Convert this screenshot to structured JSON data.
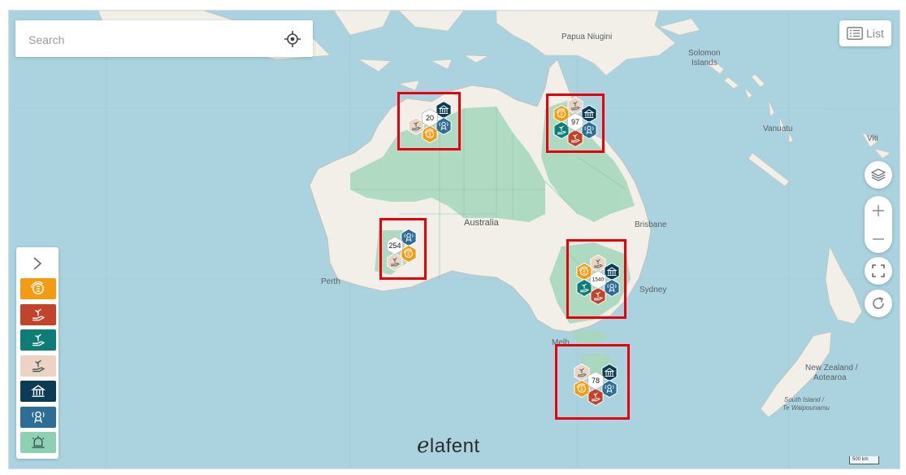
{
  "search": {
    "placeholder": "Search"
  },
  "toolbar": {
    "list_label": "List"
  },
  "map": {
    "places": {
      "papua": "Papua Niugini",
      "solomon": "Solomon\nIslands",
      "vanuatu": "Vanuatu",
      "viti": "Viti",
      "australia": "Australia",
      "brisbane": "Brisbane",
      "perth": "Perth",
      "sydney": "Sydney",
      "nz": "New Zealand /\nAotearoa",
      "south_island": "South Island /\nTe Waipounamu"
    },
    "scale_label": "500 km"
  },
  "colors": {
    "water": "#aad3df",
    "land": "#f2efe9",
    "reserve": "#a8d8be",
    "cat_orange": "#f39c12",
    "cat_red": "#c0432a",
    "cat_teal": "#0e7d78",
    "cat_beige": "#ecd3c3",
    "cat_navy": "#0b3b55",
    "cat_blue": "#2e6e96",
    "cat_mint": "#8ed1b2",
    "highlight": "#e8000b"
  },
  "categories": [
    {
      "name": "finance",
      "icon": "coin-cycle-icon",
      "color": "#f39c12"
    },
    {
      "name": "aid-red",
      "icon": "hand-seedling-icon",
      "color": "#c0432a"
    },
    {
      "name": "aid-teal",
      "icon": "hand-seedling-icon",
      "color": "#0e7d78"
    },
    {
      "name": "aid-beige",
      "icon": "hand-seedling-icon",
      "color": "#ecd3c3"
    },
    {
      "name": "institution",
      "icon": "bank-building-icon",
      "color": "#0b3b55"
    },
    {
      "name": "broadcast",
      "icon": "antenna-tower-icon",
      "color": "#2e6e96"
    },
    {
      "name": "alert",
      "icon": "siren-icon",
      "color": "#8ed1b2"
    }
  ],
  "clusters": [
    {
      "id": "northwest",
      "count": "20"
    },
    {
      "id": "northeast",
      "count": "97"
    },
    {
      "id": "west",
      "count": "254"
    },
    {
      "id": "east",
      "count": "1540"
    },
    {
      "id": "southeast",
      "count": "78"
    }
  ],
  "brand": {
    "logo_e": "e",
    "logo_rest": "lafent"
  }
}
